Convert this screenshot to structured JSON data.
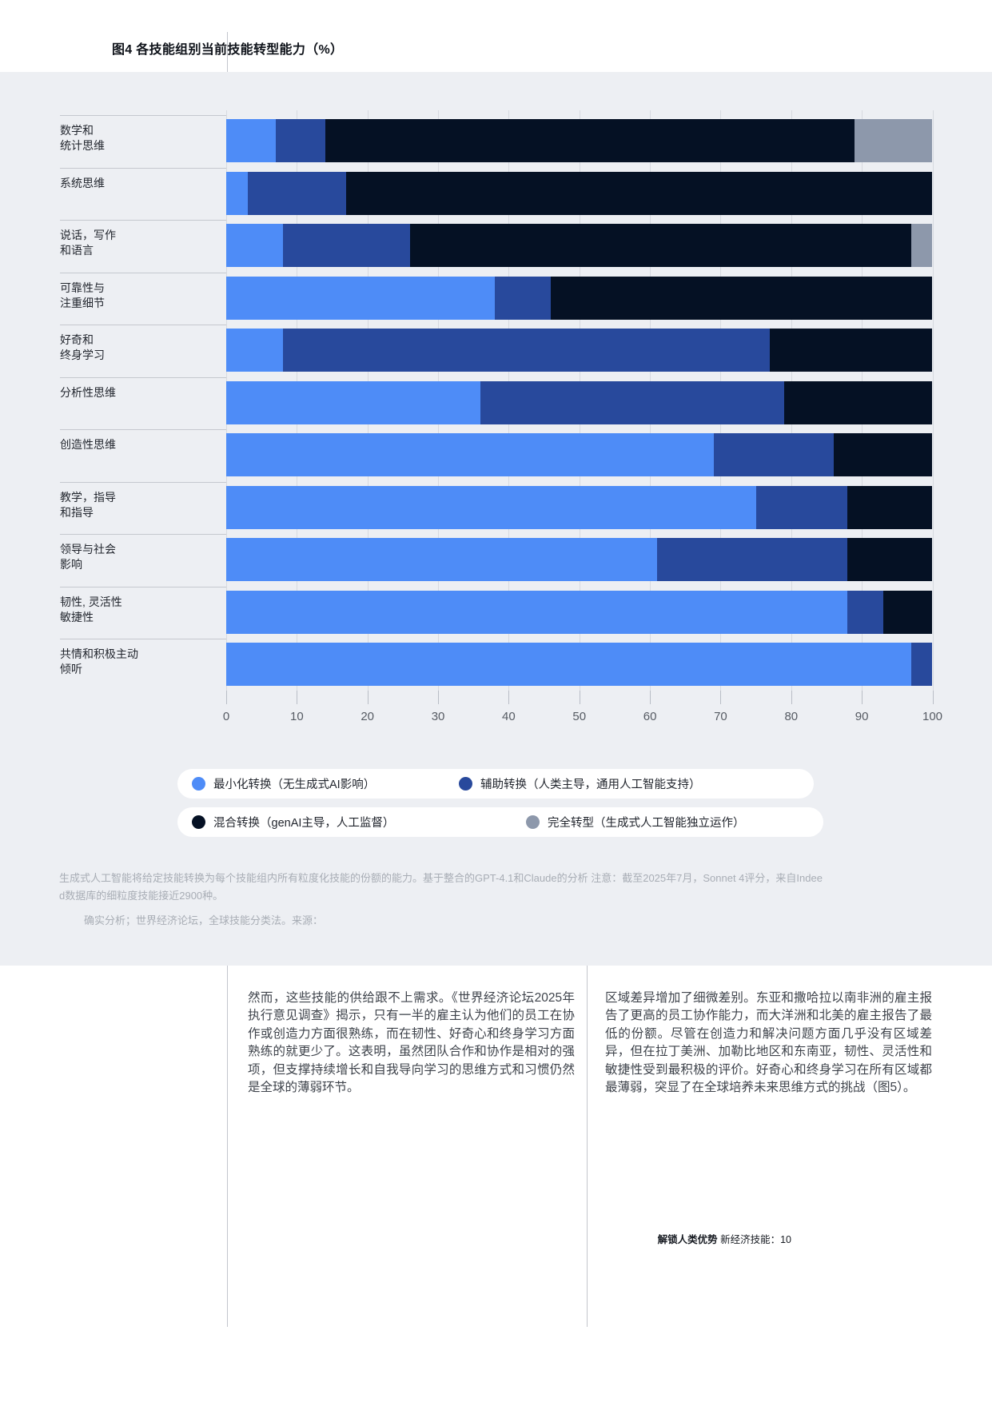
{
  "page_title": "图4 各技能组别当前技能转型能力（%）",
  "chart_data": {
    "type": "bar",
    "variant": "horizontal-stacked",
    "title": "图4 各技能组别当前技能转型能力（%）",
    "categories": [
      "数学和\n统计思维",
      "系统思维",
      "说话，写作\n和语言",
      "可靠性与\n注重细节",
      "好奇和\n终身学习",
      "分析性思维",
      "创造性思维",
      "教学，指导\n和指导",
      "领导与社会\n影响",
      "韧性, 灵活性\n敏捷性",
      "共情和积极主动\n倾听"
    ],
    "series": [
      {
        "name": "最小化转换（无生成式AI影响）",
        "color": "#4e8cf7",
        "values": [
          7,
          3,
          8,
          38,
          8,
          36,
          69,
          75,
          61,
          88,
          97
        ]
      },
      {
        "name": "辅助转换（人类主导，通用人工智能支持）",
        "color": "#28499c",
        "values": [
          7,
          14,
          18,
          8,
          69,
          43,
          17,
          13,
          27,
          5,
          3
        ]
      },
      {
        "name": "混合转换（genAI主导，人工监督）",
        "color": "#051124",
        "values": [
          75,
          83,
          71,
          54,
          23,
          21,
          14,
          12,
          12,
          7,
          0
        ]
      },
      {
        "name": "完全转型（生成式人工智能独立运作）",
        "color": "#8d98ab",
        "values": [
          11,
          0,
          3,
          0,
          0,
          0,
          0,
          0,
          0,
          0,
          0
        ]
      }
    ],
    "xlim": [
      0,
      100
    ],
    "tick_step": 10,
    "tick_labels": [
      "0",
      "10",
      "20",
      "30",
      "40",
      "50",
      "60",
      "70",
      "80",
      "90",
      "100"
    ],
    "grid": true,
    "legend_position": "bottom"
  },
  "legend": {
    "rows": [
      {
        "items": [
          0,
          1
        ]
      },
      {
        "items": [
          2,
          3
        ]
      }
    ]
  },
  "notes": {
    "note_line1": "生成式人工智能将给定技能转换为每个技能组内所有粒度化技能的份额的能力。基于整合的GPT-4.1和Claude的分析  注意：截至2025年7月，Sonnet 4评分，来自Indee",
    "note_line2": "d数据库的细粒度技能接近2900种。",
    "source_line": "确实分析；世界经济论坛，全球技能分类法。来源："
  },
  "body": {
    "col1": "然而，这些技能的供给跟不上需求。《世界经济论坛2025年执行意见调查》揭示，只有一半的雇主认为他们的员工在协作或创造力方面很熟练，而在韧性、好奇心和终身学习方面熟练的就更少了。这表明，虽然团队合作和协作是相对的强项，但支撑持续增长和自我导向学习的思维方式和习惯仍然是全球的薄弱环节。",
    "col2": "区域差异增加了细微差别。东亚和撒哈拉以南非洲的雇主报告了更高的员工协作能力，而大洋洲和北美的雇主报告了最低的份额。尽管在创造力和解决问题方面几乎没有区域差异，但在拉丁美洲、加勒比地区和东南亚，韧性、灵活性和敏捷性受到最积极的评价。好奇心和终身学习在所有区域都最薄弱，突显了在全球培养未来思维方式的挑战（图5）。"
  },
  "footer": {
    "bold_part": "解锁人类优势",
    "regular_part": "新经济技能：10"
  }
}
